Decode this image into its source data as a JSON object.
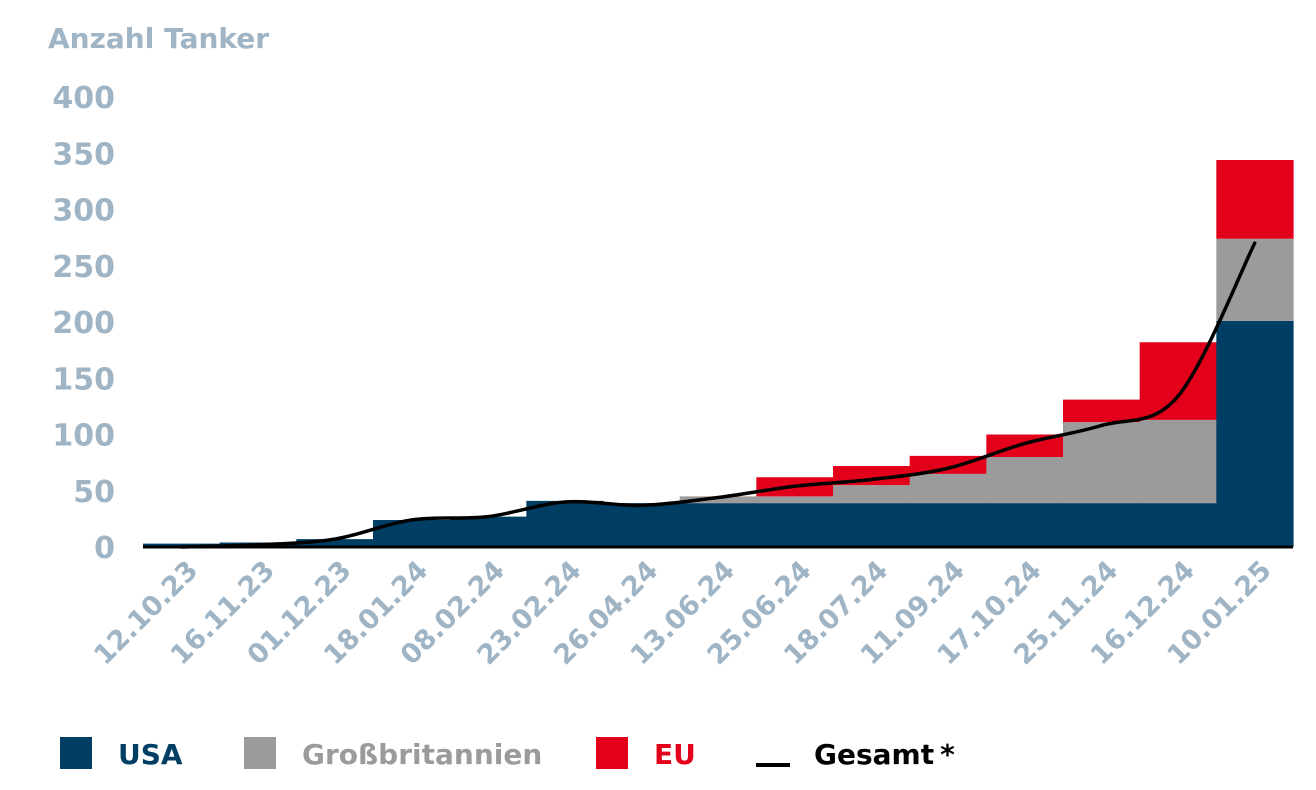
{
  "chart_data": {
    "type": "bar",
    "stacked": true,
    "ylabel": "Anzahl Tanker",
    "ylim": [
      0,
      400
    ],
    "yticks": [
      0,
      50,
      100,
      150,
      200,
      250,
      300,
      350,
      400
    ],
    "categories": [
      "12.10.23",
      "16.11.23",
      "01.12.23",
      "18.01.24",
      "08.02.24",
      "23.02.24",
      "26.04.24",
      "13.06.24",
      "25.06.24",
      "18.07.24",
      "11.09.24",
      "17.10.24",
      "25.11.24",
      "16.12.24",
      "10.01.25"
    ],
    "series": [
      {
        "name": "USA",
        "kind": "bar",
        "color": "#003e64",
        "values": [
          3,
          4,
          7,
          24,
          27,
          41,
          39,
          39,
          39,
          39,
          39,
          39,
          39,
          39,
          201
        ]
      },
      {
        "name": "Großbritannien",
        "kind": "bar",
        "color": "#9b9b9b",
        "values": [
          0,
          0,
          0,
          0,
          0,
          0,
          0,
          6,
          6,
          16,
          26,
          41,
          72,
          74,
          73
        ]
      },
      {
        "name": "EU",
        "kind": "bar",
        "color": "#e2001a",
        "values": [
          0,
          0,
          0,
          0,
          0,
          0,
          0,
          0,
          17,
          17,
          16,
          20,
          20,
          69,
          70
        ]
      },
      {
        "name": "Gesamt",
        "kind": "line",
        "color": "#000000",
        "values": [
          0,
          2,
          7,
          24,
          27,
          40,
          37,
          44,
          54,
          60,
          70,
          92,
          108,
          134,
          270
        ]
      }
    ],
    "legend": {
      "position": "bottom",
      "items": [
        {
          "label": "USA",
          "color": "#003e64",
          "marker": "square"
        },
        {
          "label": "Großbritannien",
          "color": "#9b9b9b",
          "marker": "square"
        },
        {
          "label": "EU",
          "color": "#e2001a",
          "marker": "square"
        },
        {
          "label": "Gesamt",
          "color": "#000000",
          "marker": "line",
          "suffix": "*"
        }
      ]
    },
    "grid": false
  }
}
